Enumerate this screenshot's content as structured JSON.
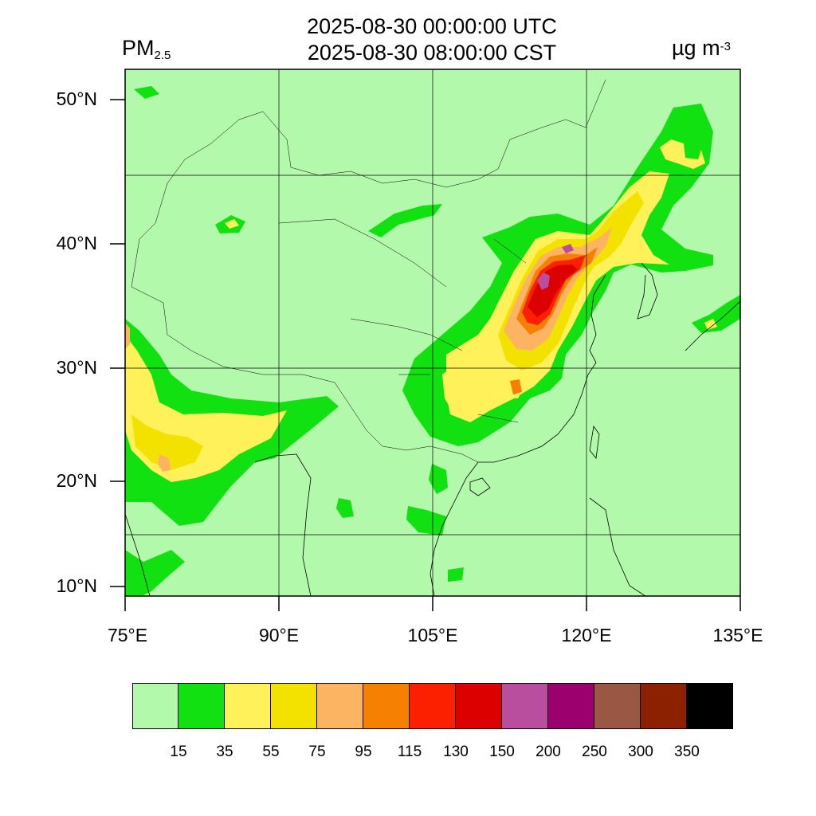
{
  "title": {
    "utc": "2025-08-30 00:00:00 UTC",
    "local": "2025-08-30 08:00:00 CST"
  },
  "variable": {
    "name": "PM",
    "subscript": "2.5"
  },
  "units": {
    "base": "µg m",
    "exponent": "-3"
  },
  "axes": {
    "lat_ticks": [
      "50°N",
      "40°N",
      "30°N",
      "20°N",
      "10°N"
    ],
    "lon_ticks": [
      "75°E",
      "90°E",
      "105°E",
      "120°E",
      "135°E"
    ]
  },
  "colorbar": {
    "colors": [
      "#b3f9ab",
      "#11e011",
      "#fef15a",
      "#f3e200",
      "#fdb462",
      "#f68001",
      "#fc2000",
      "#dc0000",
      "#ba4e9e",
      "#9b006e",
      "#9a5744",
      "#8b2100",
      "#000000"
    ],
    "labels": [
      "15",
      "35",
      "55",
      "75",
      "95",
      "115",
      "130",
      "150",
      "200",
      "250",
      "300",
      "350"
    ]
  }
}
